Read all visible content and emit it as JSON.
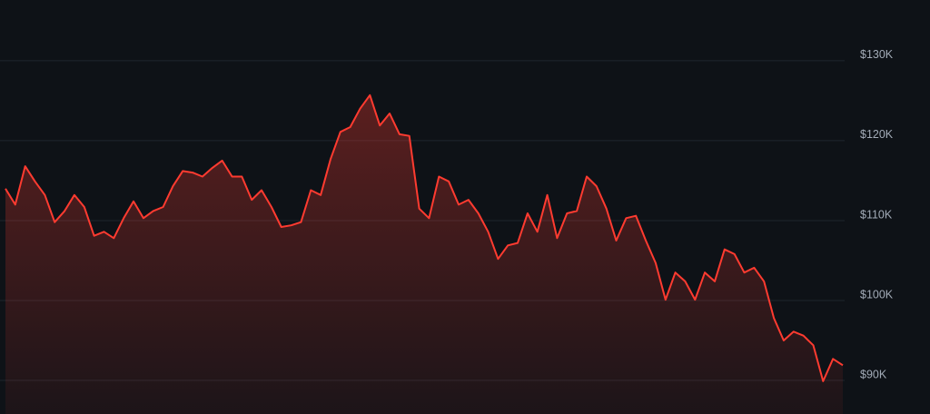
{
  "chart_data": {
    "type": "area",
    "color": "#ff3b30",
    "grid": true,
    "ylim": [
      85800,
      137600
    ],
    "yticks": [
      {
        "value": 90000,
        "label": "$90K"
      },
      {
        "value": 100000,
        "label": "$100K"
      },
      {
        "value": 110000,
        "label": "$110K"
      },
      {
        "value": 120000,
        "label": "$120K"
      },
      {
        "value": 130000,
        "label": "$130K"
      }
    ],
    "values": [
      114000,
      112000,
      116800,
      114900,
      113200,
      109800,
      111200,
      113200,
      111700,
      108100,
      108600,
      107800,
      110300,
      112400,
      110300,
      111200,
      111700,
      114300,
      116200,
      116000,
      115500,
      116600,
      117500,
      115500,
      115500,
      112600,
      113800,
      111700,
      109200,
      109400,
      109800,
      113800,
      113200,
      117700,
      121100,
      121700,
      124000,
      125700,
      121900,
      123400,
      120800,
      120600,
      111500,
      110300,
      115500,
      114900,
      112000,
      112600,
      110900,
      108600,
      105200,
      106900,
      107200,
      110900,
      108600,
      113200,
      107800,
      110900,
      111200,
      115500,
      114300,
      111500,
      107500,
      110300,
      110600,
      107500,
      104700,
      100100,
      103500,
      102400,
      100100,
      103500,
      102400,
      106400,
      105800,
      103500,
      104100,
      102400,
      97800,
      95000,
      96100,
      95600,
      94400,
      89900,
      92700,
      91900
    ]
  }
}
